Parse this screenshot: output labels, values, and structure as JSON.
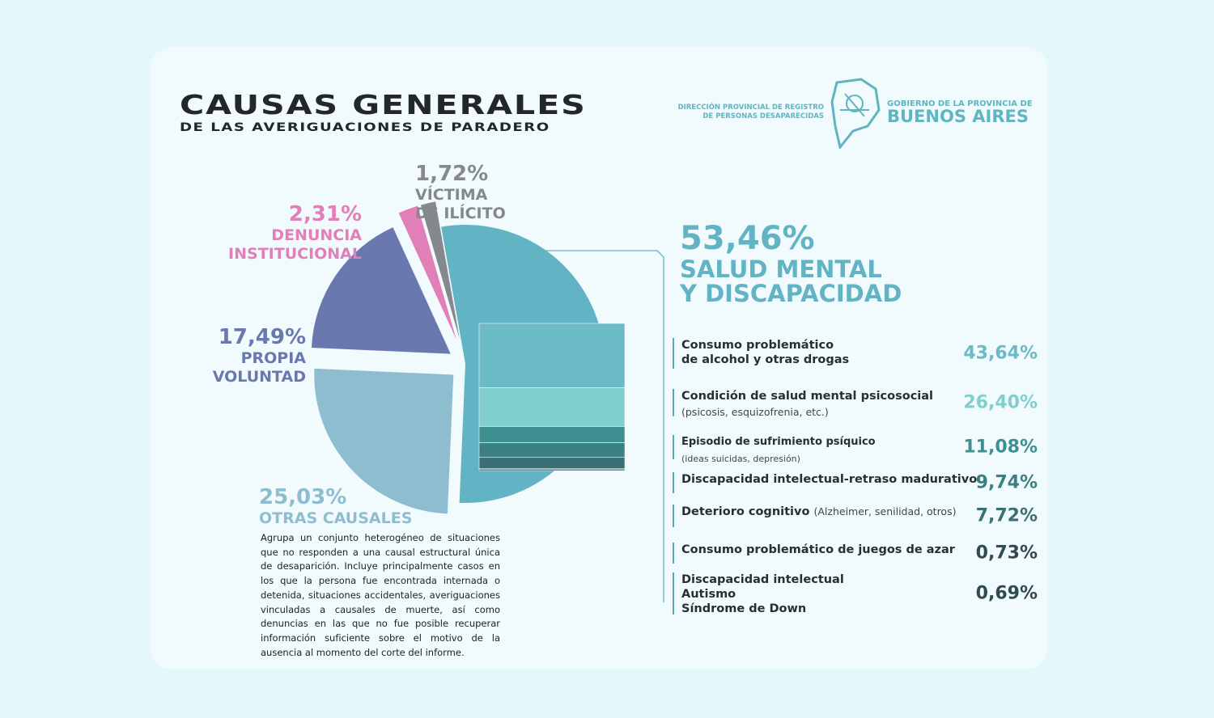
{
  "header": {
    "org_left": "DIRECCIÓN PROVINCIAL DE REGISTRO\nDE PERSONAS DESAPARECIDAS",
    "org_right_top": "GOBIERNO DE LA PROVINCIA DE",
    "org_right_main": "BUENOS AIRES"
  },
  "chart_data": {
    "type": "pie",
    "title": "CAUSAS GENERALES",
    "subtitle": "DE LAS AVERIGUACIONES DE PARADERO",
    "categories": [
      "SALUD MENTAL\nY DISCAPACIDAD",
      "OTRAS CAUSALES",
      "PROPIA\nVOLUNTAD",
      "DENUNCIA\nINSTITUCIONAL",
      "VÍCTIMA\nDE ILÍCITO"
    ],
    "values": [
      53.46,
      25.03,
      17.49,
      2.31,
      1.72
    ],
    "value_labels": [
      "53,46%",
      "25,03%",
      "17,49%",
      "2,31%",
      "1,72%"
    ],
    "colors": [
      "#62b3c3",
      "#8fbdd0",
      "#6a78b0",
      "#e27fb9",
      "#85898d"
    ],
    "note": "Agrupa un conjunto heterogéneo de situaciones que no responden a una causal estructural única de desaparición. Incluye principalmente casos en los que la persona fue encontrada internada o detenida, situaciones accidentales, averiguaciones vinculadas a causales de muerte, así como denuncias en las que no fue posible recuperar información suficiente sobre el motivo de la ausencia al momento del corte del informe.",
    "breakdown": {
      "categories": [
        "Consumo problemático\nde alcohol y otras drogas",
        "Condición de salud mental psicosocial",
        "Episodio de sufrimiento psíquico",
        "Discapacidad intelectual-retraso madurativo",
        "Deterioro cognitivo",
        "Consumo problemático de juegos de azar",
        "Discapacidad intelectual\nAutismo\nSíndrome de Down"
      ],
      "details": [
        "(psicosis, esquizofrenia, etc.)",
        "(ideas suicidas, depresión)",
        "(Alzheimer, senilidad, otros)"
      ],
      "values": [
        43.64,
        26.4,
        11.08,
        9.74,
        7.72,
        0.73,
        0.69
      ],
      "value_labels": [
        "43,64%",
        "26,40%",
        "11,08%",
        "9,74%",
        "7,72%",
        "0,73%",
        "0,69%"
      ],
      "colors": [
        "#6bbac6",
        "#80cfcd",
        "#3f8f90",
        "#3a7f82",
        "#3b6f73",
        "#2f4a50",
        "#2f4a50"
      ]
    }
  }
}
